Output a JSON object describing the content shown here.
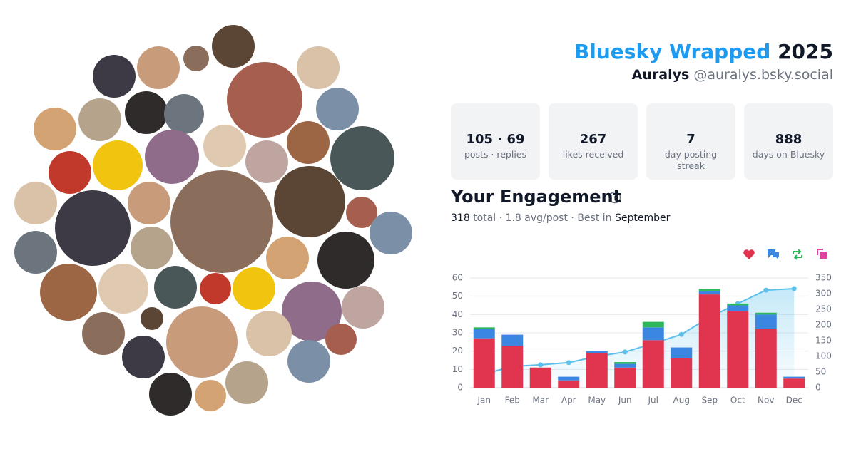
{
  "header": {
    "brand": "Bluesky Wrapped",
    "year": "2025",
    "display_name": "Auralys",
    "handle": "@auralys.bsky.social"
  },
  "stats": [
    {
      "value": "105 · 69",
      "label": "posts · replies"
    },
    {
      "value": "267",
      "label": "likes received"
    },
    {
      "value": "7",
      "label": "day posting streak"
    },
    {
      "value": "888",
      "label": "days on Bluesky"
    }
  ],
  "engagement": {
    "heading": "Your Engagement",
    "total": "318",
    "summary": "total · 1.8 avg/post · Best in",
    "best_month": "September"
  },
  "chart_data": {
    "type": "bar",
    "categories": [
      "Jan",
      "Feb",
      "Mar",
      "Apr",
      "May",
      "Jun",
      "Jul",
      "Aug",
      "Sep",
      "Oct",
      "Nov",
      "Dec"
    ],
    "series": [
      {
        "color": "#e0344f",
        "values": [
          27,
          23,
          11,
          4,
          19,
          11,
          26,
          16,
          51,
          42,
          32,
          5
        ]
      },
      {
        "color": "#3a86e0",
        "values": [
          5,
          6,
          0,
          2,
          1,
          2,
          7,
          6,
          2,
          3,
          8,
          1
        ]
      },
      {
        "color": "#2fb85a",
        "values": [
          1,
          0,
          0,
          0,
          0,
          1,
          3,
          0,
          1,
          1,
          1,
          0
        ]
      },
      {
        "color": "#e040a0",
        "values": [
          0,
          0,
          0,
          0,
          0,
          0,
          0,
          0,
          0,
          0,
          0,
          0
        ]
      },
      {
        "type": "line",
        "axis": "y2",
        "color": "#5bc0eb",
        "values": [
          43,
          68,
          73,
          80,
          100,
          114,
          141,
          170,
          225,
          268,
          311,
          316
        ]
      }
    ],
    "ylim": [
      0,
      60
    ],
    "yticks": [
      0,
      10,
      20,
      30,
      40,
      50,
      60
    ],
    "y2lim": [
      0,
      350
    ],
    "y2ticks": [
      0,
      50,
      100,
      150,
      200,
      250,
      300,
      350
    ],
    "grid": true
  }
}
